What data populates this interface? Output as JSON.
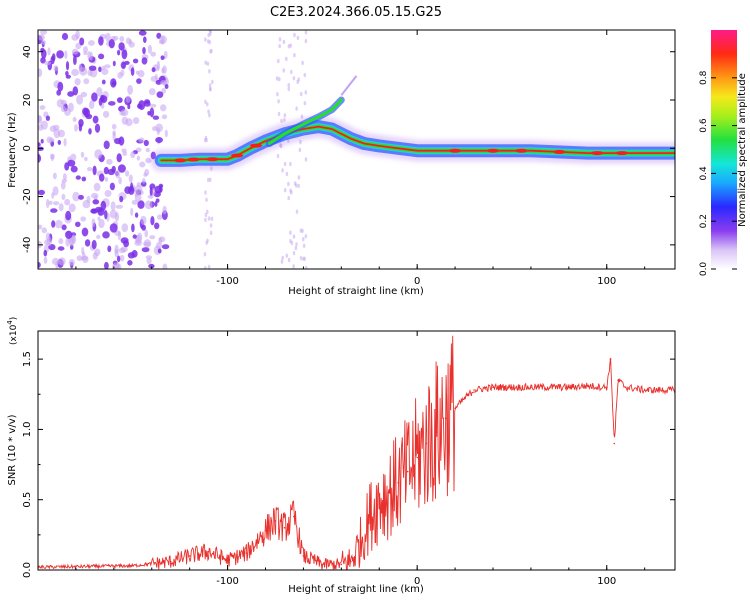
{
  "title": "C2E3.2024.366.05.15.G25",
  "colors": {
    "trace": "#e8302c",
    "scatter": "#7a2ee6",
    "scatter_light": "#c9a8f2",
    "band_core": "#ff1a1a",
    "band_mid": "#25e02a",
    "band_outer": "#2d5bff",
    "band_halo": "#9b5cf0"
  },
  "chart_data": [
    {
      "type": "heatmap",
      "name": "spectrogram",
      "xlabel": "Height of straight line (km)",
      "ylabel": "Frequency (Hz)",
      "xlim": [
        -200,
        136
      ],
      "ylim": [
        -50,
        49
      ],
      "xticks": [
        -100,
        0,
        100
      ],
      "yticks": [
        -40,
        -20,
        0,
        20,
        40
      ],
      "colorbar": {
        "label": "Normalized spectral amplitude",
        "range": [
          0,
          1
        ],
        "ticks": [
          "0.0",
          "0.2",
          "0.4",
          "0.6",
          "0.8"
        ]
      },
      "signal_track": {
        "x": [
          -135,
          -125,
          -115,
          -100,
          -95,
          -88,
          -80,
          -70,
          -60,
          -52,
          -45,
          -40,
          -35,
          -28,
          -20,
          -10,
          0,
          10,
          30,
          60,
          90,
          100,
          110,
          136
        ],
        "y": [
          -5,
          -5,
          -4.5,
          -4.5,
          -3,
          0,
          3,
          6,
          8,
          9,
          8,
          6,
          4,
          2,
          1,
          0,
          -1,
          -1,
          -1,
          -1,
          -2,
          -2,
          -2,
          -2
        ]
      },
      "upper_branch": {
        "x": [
          -78,
          -70,
          -60,
          -52,
          -45,
          -40
        ],
        "y": [
          2,
          6,
          10,
          13,
          16,
          20
        ]
      },
      "noise_region_x": [
        -200,
        -132
      ]
    },
    {
      "type": "line",
      "name": "snr",
      "xlabel": "Height of straight line (km)",
      "ylabel": "SNR (10 * v/v)",
      "multiplier": "(x10",
      "multiplier_exp": "4",
      "multiplier_close": ")",
      "xlim": [
        -200,
        136
      ],
      "ylim": [
        0,
        1.7
      ],
      "xticks": [
        -100,
        0,
        100
      ],
      "yticks": [
        "0.0",
        "0.5",
        "1.0",
        "1.5"
      ],
      "series": [
        {
          "name": "SNR",
          "x": [
            -200,
            -150,
            -130,
            -120,
            -110,
            -100,
            -90,
            -80,
            -75,
            -70,
            -65,
            -60,
            -50,
            -40,
            -35,
            -30,
            -25,
            -20,
            -15,
            -10,
            -5,
            0,
            5,
            10,
            15,
            20,
            25,
            30,
            40,
            50,
            60,
            70,
            80,
            90,
            100,
            102,
            104,
            106,
            110,
            120,
            136
          ],
          "y": [
            0.02,
            0.03,
            0.06,
            0.1,
            0.13,
            0.07,
            0.12,
            0.28,
            0.35,
            0.3,
            0.38,
            0.1,
            0.04,
            0.04,
            0.06,
            0.2,
            0.38,
            0.5,
            0.55,
            0.62,
            0.7,
            0.8,
            0.9,
            0.98,
            1.08,
            1.15,
            1.22,
            1.28,
            1.3,
            1.3,
            1.3,
            1.3,
            1.3,
            1.31,
            1.3,
            1.5,
            0.9,
            1.35,
            1.3,
            1.28,
            1.28
          ]
        }
      ]
    }
  ]
}
